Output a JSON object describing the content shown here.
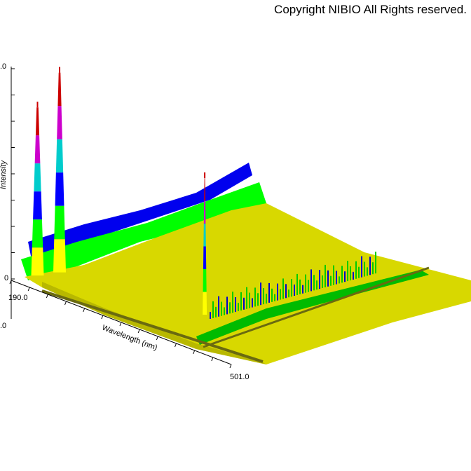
{
  "copyright": "Copyright NIBIO All Rights reserved.",
  "chart_data": {
    "type": "area",
    "style": "3D waterfall surface",
    "axes": {
      "intensity_label": "Intensity",
      "wavelength_label": "Wavelength (nm)",
      "wavelength_range": [
        190.0,
        501.0
      ],
      "wavelength_ticks": [
        "190.0",
        "501.0"
      ],
      "intensity_ticks": [
        ".0",
        "0"
      ],
      "depth_tick": ".0"
    },
    "color_bands": [
      "#ffff00",
      "#00ff00",
      "#0000ff",
      "#00cccc",
      "#cc00cc",
      "#cc0000"
    ],
    "peaks": [
      {
        "wavelength": 205,
        "relative_intensity": 0.8
      },
      {
        "wavelength": 240,
        "relative_intensity": 0.95
      },
      {
        "wavelength": 470,
        "relative_intensity": 0.65
      }
    ]
  }
}
